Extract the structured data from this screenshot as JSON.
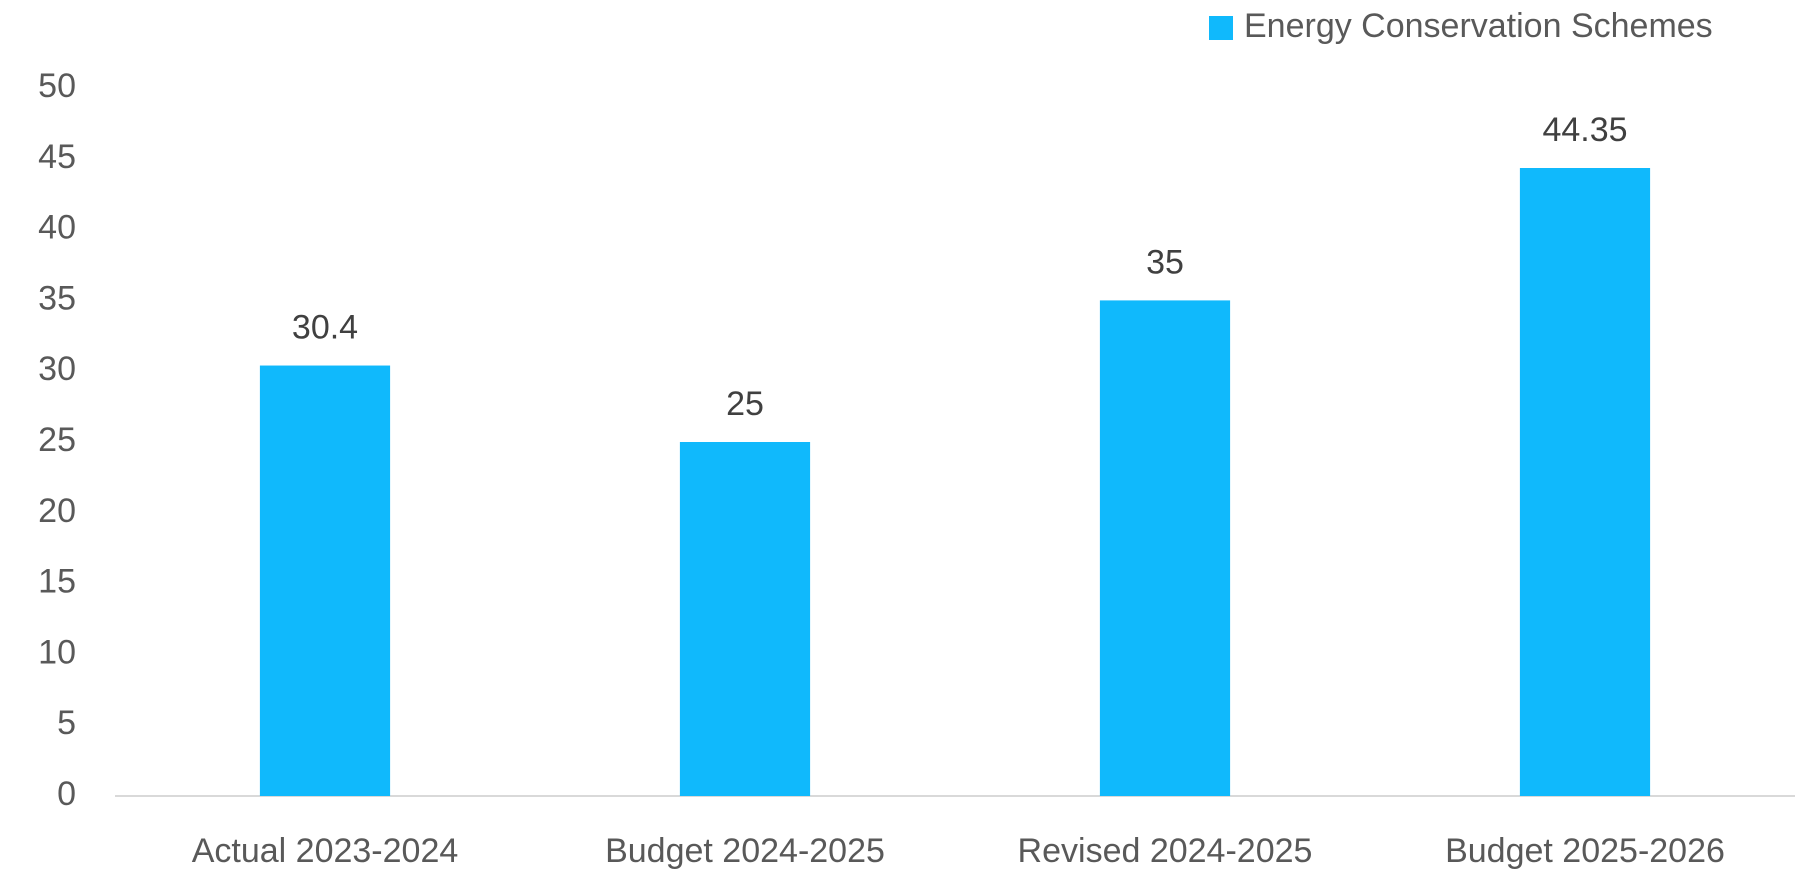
{
  "chart_data": {
    "type": "bar",
    "categories": [
      "Actual 2023-2024",
      "Budget 2024-2025",
      "Revised 2024-2025",
      "Budget 2025-2026"
    ],
    "series": [
      {
        "name": "Energy Conservation Schemes",
        "color": "#10b9fc",
        "values": [
          30.4,
          25,
          35,
          44.35
        ]
      }
    ],
    "ylim": [
      0,
      50
    ],
    "yticks": [
      0,
      5,
      10,
      15,
      20,
      25,
      30,
      35,
      40,
      45,
      50
    ],
    "grid": false,
    "legend": "top-right"
  }
}
